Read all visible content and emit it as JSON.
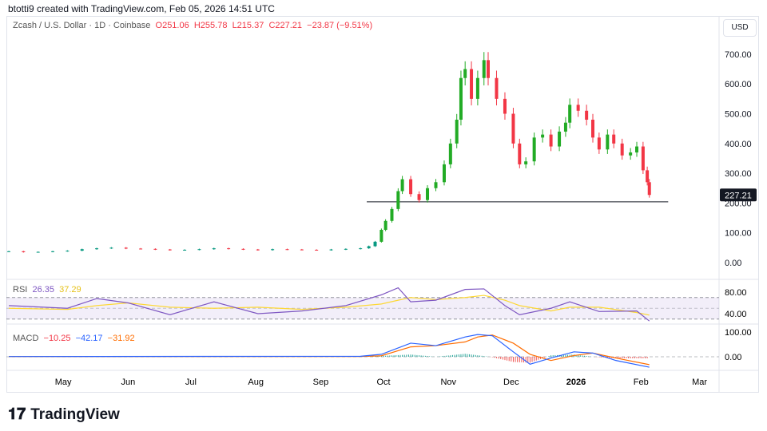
{
  "header": {
    "credit": "btotti9 created with TradingView.com, Feb 05, 2026 14:51 UTC"
  },
  "legend": {
    "symbol": "Zcash / U.S. Dollar · 1D · Coinbase",
    "o": "O251.06",
    "h": "H255.78",
    "l": "L215.37",
    "c": "C227.21",
    "change": "−23.87 (−9.51%)"
  },
  "currency_button": "USD",
  "rsi_legend": {
    "label": "RSI",
    "rsi": "26.35",
    "ma": "37.29"
  },
  "macd_legend": {
    "label": "MACD",
    "hist": "−10.25",
    "macd": "−42.17",
    "signal": "−31.92"
  },
  "brand": {
    "name": "TradingView"
  },
  "colors": {
    "up": "#089981",
    "up_bright": "#22ab25",
    "down": "#f23645",
    "rsi": "#7e57c2",
    "rsi_ma": "#fdd835",
    "macd": "#2962ff",
    "signal": "#ff6d00"
  },
  "chart_data": {
    "type": "candlestick",
    "price_axis": {
      "ticks": [
        "0.00",
        "100.00",
        "200.00",
        "300.00",
        "400.00",
        "500.00",
        "600.00",
        "700.00"
      ],
      "range": [
        0,
        750
      ],
      "last_price_label": "227.21"
    },
    "time_axis": {
      "ticks": [
        [
          "May",
          "2025-05-01"
        ],
        [
          "Jun",
          "2025-06-01"
        ],
        [
          "Jul",
          "2025-07-01"
        ],
        [
          "Aug",
          "2025-08-01"
        ],
        [
          "Sep",
          "2025-09-01"
        ],
        [
          "Oct",
          "2025-10-01"
        ],
        [
          "Nov",
          "2025-11-01"
        ],
        [
          "Dec",
          "2025-12-01"
        ],
        [
          "2026",
          "2026-01-01"
        ],
        [
          "Feb",
          "2026-02-01"
        ],
        [
          "Mar",
          "2026-03-01"
        ]
      ]
    },
    "horizontal_line": {
      "price": 204,
      "from": "2025-09-23",
      "to": "2026-02-14"
    },
    "closes": [
      [
        "2025-04-05",
        38
      ],
      [
        "2025-04-12",
        35
      ],
      [
        "2025-04-19",
        36
      ],
      [
        "2025-04-26",
        38
      ],
      [
        "2025-05-03",
        40
      ],
      [
        "2025-05-10",
        45
      ],
      [
        "2025-05-17",
        48
      ],
      [
        "2025-05-24",
        50
      ],
      [
        "2025-05-31",
        47
      ],
      [
        "2025-06-07",
        46
      ],
      [
        "2025-06-14",
        44
      ],
      [
        "2025-06-21",
        42
      ],
      [
        "2025-06-28",
        43
      ],
      [
        "2025-07-05",
        45
      ],
      [
        "2025-07-12",
        48
      ],
      [
        "2025-07-19",
        46
      ],
      [
        "2025-07-26",
        44
      ],
      [
        "2025-08-02",
        42
      ],
      [
        "2025-08-09",
        45
      ],
      [
        "2025-08-16",
        44
      ],
      [
        "2025-08-23",
        43
      ],
      [
        "2025-08-30",
        42
      ],
      [
        "2025-09-06",
        44
      ],
      [
        "2025-09-13",
        46
      ],
      [
        "2025-09-20",
        48
      ],
      [
        "2025-09-24",
        55
      ],
      [
        "2025-09-27",
        70
      ],
      [
        "2025-09-30",
        110
      ],
      [
        "2025-10-02",
        140
      ],
      [
        "2025-10-05",
        180
      ],
      [
        "2025-10-08",
        240
      ],
      [
        "2025-10-10",
        280
      ],
      [
        "2025-10-14",
        230
      ],
      [
        "2025-10-18",
        210
      ],
      [
        "2025-10-22",
        250
      ],
      [
        "2025-10-26",
        270
      ],
      [
        "2025-10-30",
        330
      ],
      [
        "2025-11-02",
        400
      ],
      [
        "2025-11-05",
        480
      ],
      [
        "2025-11-07",
        620
      ],
      [
        "2025-11-09",
        650
      ],
      [
        "2025-11-12",
        550
      ],
      [
        "2025-11-15",
        620
      ],
      [
        "2025-11-18",
        680
      ],
      [
        "2025-11-20",
        620
      ],
      [
        "2025-11-24",
        550
      ],
      [
        "2025-11-28",
        500
      ],
      [
        "2025-12-02",
        400
      ],
      [
        "2025-12-05",
        330
      ],
      [
        "2025-12-08",
        340
      ],
      [
        "2025-12-12",
        420
      ],
      [
        "2025-12-16",
        430
      ],
      [
        "2025-12-20",
        390
      ],
      [
        "2025-12-24",
        440
      ],
      [
        "2025-12-27",
        470
      ],
      [
        "2025-12-29",
        530
      ],
      [
        "2026-01-02",
        510
      ],
      [
        "2026-01-06",
        480
      ],
      [
        "2026-01-09",
        420
      ],
      [
        "2026-01-12",
        380
      ],
      [
        "2026-01-16",
        430
      ],
      [
        "2026-01-19",
        400
      ],
      [
        "2026-01-23",
        360
      ],
      [
        "2026-01-27",
        370
      ],
      [
        "2026-01-30",
        390
      ],
      [
        "2026-02-02",
        310
      ],
      [
        "2026-02-04",
        270
      ],
      [
        "2026-02-05",
        227.21
      ]
    ],
    "rsi": {
      "axis_ticks": [
        "40.00",
        "80.00"
      ],
      "bands": [
        30,
        70
      ],
      "values": [
        [
          "2025-04-05",
          55,
          50
        ],
        [
          "2025-05-03",
          50,
          48
        ],
        [
          "2025-05-17",
          68,
          55
        ],
        [
          "2025-06-01",
          60,
          60
        ],
        [
          "2025-06-21",
          38,
          52
        ],
        [
          "2025-07-12",
          62,
          50
        ],
        [
          "2025-08-02",
          40,
          52
        ],
        [
          "2025-08-23",
          45,
          48
        ],
        [
          "2025-09-13",
          55,
          52
        ],
        [
          "2025-09-30",
          75,
          58
        ],
        [
          "2025-10-08",
          88,
          65
        ],
        [
          "2025-10-14",
          62,
          70
        ],
        [
          "2025-10-26",
          65,
          66
        ],
        [
          "2025-11-09",
          85,
          70
        ],
        [
          "2025-11-18",
          86,
          74
        ],
        [
          "2025-11-28",
          55,
          65
        ],
        [
          "2025-12-05",
          38,
          55
        ],
        [
          "2025-12-20",
          50,
          45
        ],
        [
          "2025-12-29",
          62,
          52
        ],
        [
          "2026-01-12",
          44,
          52
        ],
        [
          "2026-01-30",
          45,
          42
        ],
        [
          "2026-02-05",
          26.35,
          37.29
        ]
      ]
    },
    "macd": {
      "axis_ticks": [
        "0.00",
        "100.00"
      ],
      "values": [
        [
          "2025-04-05",
          1,
          1
        ],
        [
          "2025-09-20",
          2,
          1
        ],
        [
          "2025-09-30",
          10,
          4
        ],
        [
          "2025-10-14",
          55,
          40
        ],
        [
          "2025-10-26",
          45,
          45
        ],
        [
          "2025-11-09",
          80,
          60
        ],
        [
          "2025-11-15",
          90,
          80
        ],
        [
          "2025-11-22",
          85,
          88
        ],
        [
          "2025-12-02",
          20,
          55
        ],
        [
          "2025-12-10",
          -30,
          10
        ],
        [
          "2025-12-20",
          -5,
          -15
        ],
        [
          "2025-12-31",
          20,
          5
        ],
        [
          "2026-01-09",
          15,
          15
        ],
        [
          "2026-01-20",
          -15,
          -5
        ],
        [
          "2026-02-05",
          -42.17,
          -31.92
        ]
      ]
    }
  }
}
